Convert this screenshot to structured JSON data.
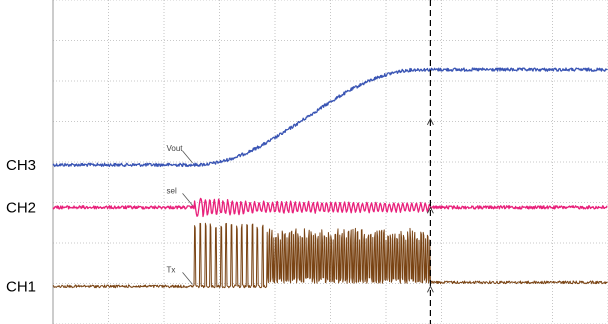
{
  "chart_data": {
    "type": "line",
    "title": "",
    "xlabel": "",
    "ylabel": "",
    "grid": true,
    "grid_divisions": {
      "x": 10,
      "y": 8
    },
    "cursor_division": 6.8,
    "channels": [
      {
        "id": "ch3",
        "label": "CH3",
        "marker": "Vout",
        "color": "#3a55b4",
        "ground_div": 3.93,
        "event_div": 2.55,
        "description": "ramps from ground to a plateau near 2.35 divisions above ground between 2.55 and 6.6 divisions"
      },
      {
        "id": "ch2",
        "label": "CH2",
        "marker": "sel",
        "color": "#e8207a",
        "ground_div": 2.88,
        "event_div": 2.55,
        "description": "oscillates from about 2.6 to 6.8 divisions, then returns to a flat level"
      },
      {
        "id": "ch1",
        "label": "CH1",
        "marker": "Tx",
        "color": "#7a4414",
        "ground_div": 0.93,
        "event_div": 2.55,
        "description": "burst of pulses from 2.55 to 6.8 divisions, dense block after 3.85 divisions, slight level step after burst"
      }
    ]
  }
}
